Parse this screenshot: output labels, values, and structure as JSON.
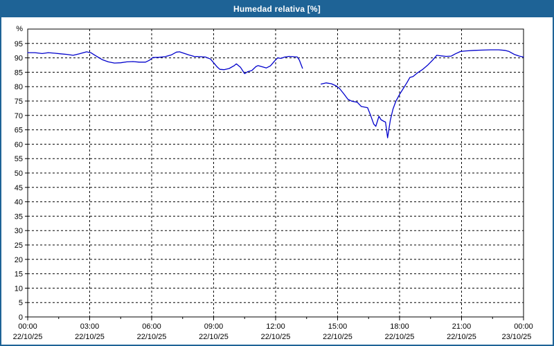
{
  "window": {
    "title": "Humedad relativa [%]"
  },
  "colors": {
    "titlebar_bg": "#1E6396",
    "titlebar_text": "#FFFFFF",
    "chart_bg": "#FFFFFF",
    "plot_border": "#000000",
    "grid": "#000000",
    "axis_text": "#000000",
    "line": "#0000CC"
  },
  "chart_data": {
    "type": "line",
    "title": "Humedad relativa [%]",
    "ylabel": "%",
    "xlabel": "",
    "ylim": [
      0,
      100
    ],
    "xlim_hours": [
      0,
      24
    ],
    "y_ticks": [
      0,
      5,
      10,
      15,
      20,
      25,
      30,
      35,
      40,
      45,
      50,
      55,
      60,
      65,
      70,
      75,
      80,
      85,
      90,
      95
    ],
    "y_unit_label": "%",
    "grid": "dashed",
    "legend": "none",
    "x_ticks": [
      {
        "t": 0,
        "time": "00:00",
        "date": "22/10/25"
      },
      {
        "t": 3,
        "time": "03:00",
        "date": "22/10/25"
      },
      {
        "t": 6,
        "time": "06:00",
        "date": "22/10/25"
      },
      {
        "t": 9,
        "time": "09:00",
        "date": "22/10/25"
      },
      {
        "t": 12,
        "time": "12:00",
        "date": "22/10/25"
      },
      {
        "t": 15,
        "time": "15:00",
        "date": "22/10/25"
      },
      {
        "t": 18,
        "time": "18:00",
        "date": "22/10/25"
      },
      {
        "t": 21,
        "time": "21:00",
        "date": "22/10/25"
      },
      {
        "t": 24,
        "time": "00:00",
        "date": "23/10/25"
      }
    ],
    "x_minor_tick_step_hours": 1.5,
    "series": [
      {
        "name": "Humedad relativa",
        "color": "#0000CC",
        "segments": [
          [
            [
              0.0,
              91.8
            ],
            [
              0.35,
              91.8
            ],
            [
              0.7,
              91.5
            ],
            [
              1.0,
              91.8
            ],
            [
              1.3,
              91.6
            ],
            [
              1.6,
              91.4
            ],
            [
              1.9,
              91.2
            ],
            [
              2.2,
              90.9
            ],
            [
              2.5,
              91.4
            ],
            [
              2.85,
              92.1
            ],
            [
              3.05,
              91.8
            ],
            [
              3.3,
              90.7
            ],
            [
              3.6,
              89.4
            ],
            [
              3.9,
              88.6
            ],
            [
              4.2,
              88.2
            ],
            [
              4.5,
              88.3
            ],
            [
              4.8,
              88.6
            ],
            [
              5.1,
              88.7
            ],
            [
              5.4,
              88.5
            ],
            [
              5.7,
              88.5
            ],
            [
              5.9,
              89.2
            ],
            [
              6.05,
              90.1
            ],
            [
              6.35,
              90.2
            ],
            [
              6.65,
              90.4
            ],
            [
              6.95,
              91.0
            ],
            [
              7.2,
              92.0
            ],
            [
              7.35,
              92.1
            ],
            [
              7.55,
              91.6
            ],
            [
              7.8,
              91.0
            ],
            [
              8.05,
              90.5
            ],
            [
              8.35,
              90.4
            ],
            [
              8.6,
              90.3
            ],
            [
              8.85,
              89.6
            ],
            [
              9.0,
              88.3
            ],
            [
              9.15,
              87.0
            ],
            [
              9.3,
              86.0
            ],
            [
              9.5,
              85.9
            ],
            [
              9.75,
              86.3
            ],
            [
              10.0,
              87.3
            ],
            [
              10.1,
              87.9
            ],
            [
              10.3,
              86.7
            ],
            [
              10.5,
              84.5
            ],
            [
              10.65,
              85.2
            ],
            [
              10.85,
              85.6
            ],
            [
              11.05,
              87.0
            ],
            [
              11.15,
              87.3
            ],
            [
              11.35,
              86.9
            ],
            [
              11.55,
              86.5
            ],
            [
              11.75,
              87.2
            ],
            [
              11.95,
              88.9
            ],
            [
              12.1,
              90.0
            ],
            [
              12.25,
              89.8
            ],
            [
              12.45,
              90.3
            ],
            [
              12.65,
              90.5
            ],
            [
              12.85,
              90.4
            ],
            [
              13.05,
              90.3
            ],
            [
              13.15,
              89.2
            ],
            [
              13.3,
              86.4
            ]
          ],
          [
            [
              14.2,
              80.9
            ],
            [
              14.45,
              81.3
            ],
            [
              14.7,
              81.0
            ],
            [
              14.95,
              80.2
            ],
            [
              15.1,
              79.3
            ],
            [
              15.3,
              77.5
            ],
            [
              15.5,
              75.6
            ],
            [
              15.7,
              74.9
            ],
            [
              15.95,
              74.6
            ],
            [
              16.15,
              73.1
            ],
            [
              16.45,
              72.7
            ],
            [
              16.6,
              70.0
            ],
            [
              16.75,
              67.0
            ],
            [
              16.85,
              66.2
            ],
            [
              17.0,
              69.7
            ],
            [
              17.1,
              68.5
            ],
            [
              17.25,
              67.9
            ],
            [
              17.32,
              67.7
            ],
            [
              17.42,
              62.2
            ],
            [
              17.55,
              68.3
            ],
            [
              17.68,
              72.2
            ],
            [
              17.82,
              74.9
            ],
            [
              18.0,
              77.3
            ],
            [
              18.2,
              79.6
            ],
            [
              18.35,
              81.3
            ],
            [
              18.5,
              83.2
            ],
            [
              18.65,
              83.5
            ],
            [
              18.85,
              84.7
            ],
            [
              19.1,
              85.9
            ],
            [
              19.35,
              87.4
            ],
            [
              19.6,
              89.2
            ],
            [
              19.8,
              90.9
            ],
            [
              20.0,
              90.7
            ],
            [
              20.25,
              90.5
            ],
            [
              20.5,
              90.6
            ],
            [
              20.7,
              91.4
            ],
            [
              20.95,
              92.2
            ],
            [
              21.2,
              92.4
            ],
            [
              21.6,
              92.6
            ],
            [
              22.0,
              92.7
            ],
            [
              22.4,
              92.8
            ],
            [
              22.8,
              92.8
            ],
            [
              23.1,
              92.6
            ],
            [
              23.3,
              92.2
            ],
            [
              23.55,
              91.2
            ],
            [
              23.8,
              90.6
            ],
            [
              24.0,
              90.3
            ]
          ]
        ]
      }
    ]
  }
}
